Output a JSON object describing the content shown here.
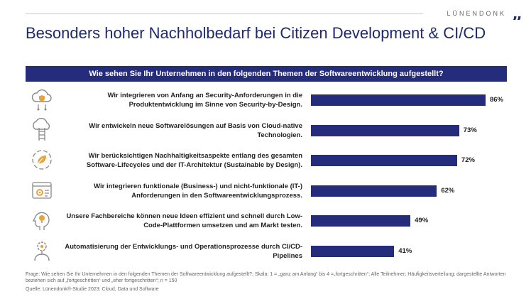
{
  "brand": {
    "name": "LÜNENDONK",
    "mark": "„"
  },
  "title": "Besonders hoher Nachholbedarf bei Citizen Development & CI/CD",
  "colors": {
    "bar": "#252c7c",
    "title": "#1f2a6e",
    "icon": "#888888",
    "icon_accent": "#e8a33d"
  },
  "chart_data": {
    "type": "bar",
    "orientation": "horizontal",
    "title": "Wie sehen Sie Ihr Unternehmen in den folgenden Themen der Softwareentwicklung aufgestellt?",
    "xlim": [
      0,
      100
    ],
    "unit": "%",
    "categories": [
      "Wir integrieren von Anfang an Security-Anforderungen in die Produktentwicklung im Sinne von Security-by-Design.",
      "Wir entwickeln neue Softwarelösungen auf Basis von Cloud-native Technologien.",
      "Wir berücksichtigen Nachhaltigkeitsaspekte entlang des gesamten Software-Lifecycles und der IT-Architektur (Sustainable by Design).",
      "Wir integrieren funktionale (Business-) und nicht-funktionale (IT-) Anforderungen in den Softwareentwicklungsprozess.",
      "Unsere Fachbereiche können neue Ideen effizient und schnell durch Low-Code-Plattformen umsetzen und am Markt testen.",
      "Automatisierung der Entwicklungs- und Operationsprozesse durch CI/CD-Pipelines"
    ],
    "values": [
      86,
      73,
      72,
      62,
      49,
      41
    ],
    "value_labels": [
      "86%",
      "73%",
      "72%",
      "62%",
      "49%",
      "41%"
    ],
    "icons": [
      "security-cloud-icon",
      "cloud-ladder-icon",
      "sustainability-leaf-icon",
      "browser-settings-icon",
      "idea-head-icon",
      "automation-gears-icon"
    ]
  },
  "footnote": "Frage: Wie sehen Sie Ihr Unternehmen in den folgenden Themen der Softwareentwicklung aufgestellt?; Skala: 1 = „ganz am Anfang“ bis 4 =„fortgeschritten“; Alle Teilnehmer; Häufigkeitsverteilung; dargestellte Antworten beziehen sich auf „fortgeschritten“ und „eher fortgeschritten“; n = 150",
  "source": "Quelle: Lünendonk®-Studie 2023: Cloud, Data und Software"
}
